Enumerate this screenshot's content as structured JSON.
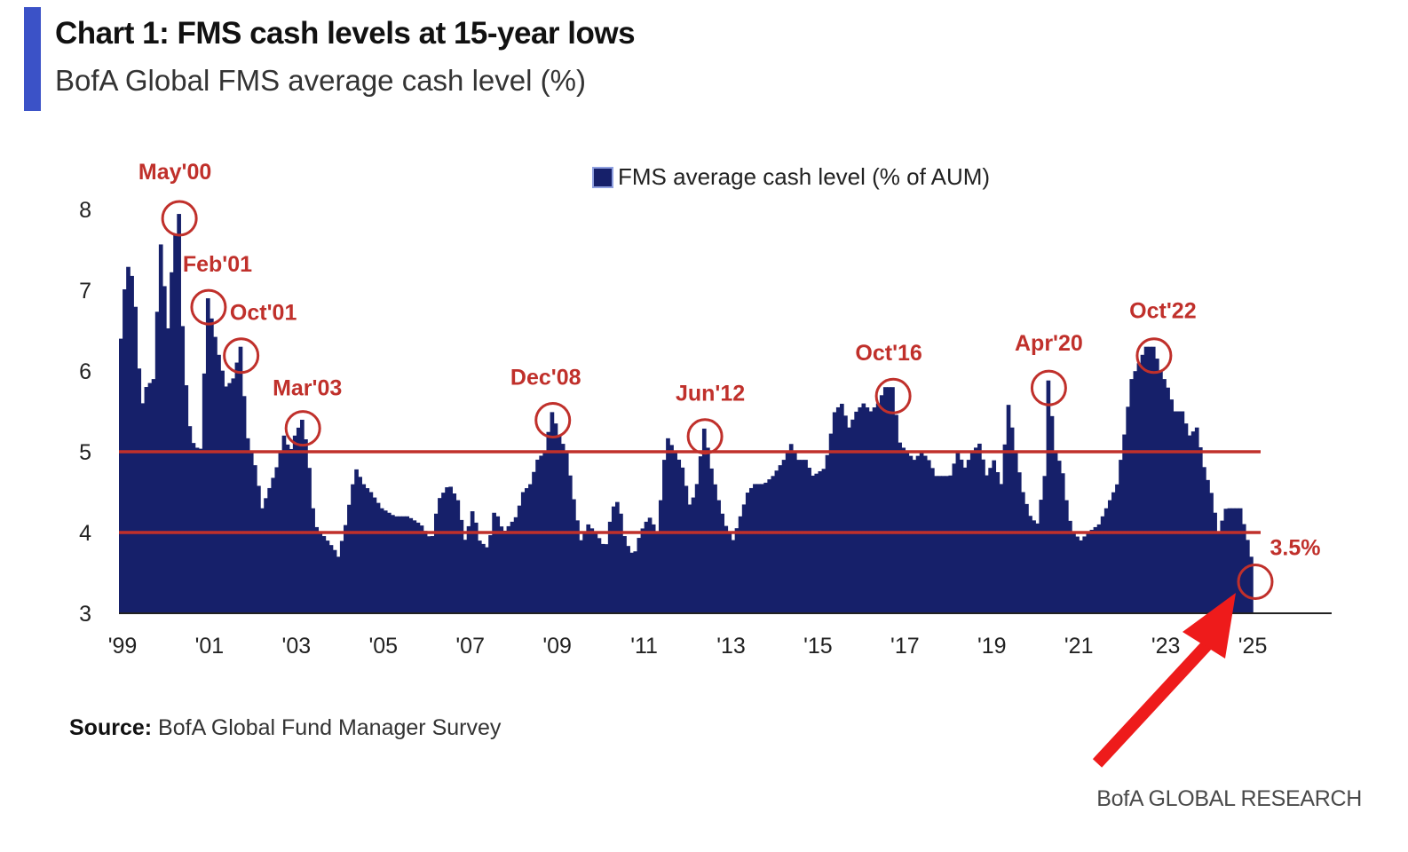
{
  "header": {
    "title": "Chart 1: FMS cash levels at 15-year lows",
    "subtitle": "BofA Global FMS average cash level (%)"
  },
  "footer": {
    "source_label": "Source:",
    "source_text": "BofA Global Fund Manager Survey",
    "brand": "BofA GLOBAL RESEARCH"
  },
  "colors": {
    "bar": "#16206a",
    "annotation": "#c0302b",
    "accent": "#3b52c7",
    "arrow": "#ee1b1b"
  },
  "chart_data": {
    "type": "bar",
    "title": "Chart 1: FMS cash levels at 15-year lows",
    "subtitle": "BofA Global FMS average cash level (%)",
    "series_name": "FMS average cash level (% of AUM)",
    "ylim": [
      3,
      8.5
    ],
    "yticks": [
      3,
      4,
      5,
      6,
      7,
      8
    ],
    "x_start": 1999.0,
    "x_end": 2027.0,
    "xtick_values": [
      1999,
      2001,
      2003,
      2005,
      2007,
      2009,
      2011,
      2013,
      2015,
      2017,
      2019,
      2021,
      2023,
      2025
    ],
    "xtick_labels": [
      "'99",
      "'01",
      "'03",
      "'05",
      "'07",
      "'09",
      "'11",
      "'13",
      "'15",
      "'17",
      "'19",
      "'21",
      "'23",
      "'25"
    ],
    "reference_lines": [
      4.0,
      5.0
    ],
    "keypoints": [
      [
        1999.0,
        6.4
      ],
      [
        1999.08,
        7.0
      ],
      [
        1999.17,
        7.3
      ],
      [
        1999.3,
        7.1
      ],
      [
        1999.42,
        6.0
      ],
      [
        1999.5,
        5.6
      ],
      [
        1999.58,
        5.8
      ],
      [
        1999.75,
        5.9
      ],
      [
        1999.92,
        7.6
      ],
      [
        2000.08,
        6.5
      ],
      [
        2000.2,
        7.5
      ],
      [
        2000.33,
        8.0
      ],
      [
        2000.42,
        6.5
      ],
      [
        2000.55,
        5.4
      ],
      [
        2000.67,
        5.1
      ],
      [
        2000.83,
        5.0
      ],
      [
        2001.0,
        6.9
      ],
      [
        2001.1,
        6.6
      ],
      [
        2001.25,
        6.2
      ],
      [
        2001.42,
        5.8
      ],
      [
        2001.58,
        5.9
      ],
      [
        2001.75,
        6.3
      ],
      [
        2001.9,
        5.2
      ],
      [
        2002.1,
        4.8
      ],
      [
        2002.25,
        4.3
      ],
      [
        2002.45,
        4.6
      ],
      [
        2002.58,
        4.8
      ],
      [
        2002.75,
        5.2
      ],
      [
        2002.9,
        5.0
      ],
      [
        2003.0,
        5.2
      ],
      [
        2003.17,
        5.4
      ],
      [
        2003.3,
        5.0
      ],
      [
        2003.45,
        4.1
      ],
      [
        2003.6,
        4.0
      ],
      [
        2003.75,
        3.9
      ],
      [
        2003.9,
        3.8
      ],
      [
        2004.0,
        3.7
      ],
      [
        2004.17,
        4.1
      ],
      [
        2004.4,
        4.8
      ],
      [
        2004.58,
        4.6
      ],
      [
        2004.75,
        4.5
      ],
      [
        2005.0,
        4.3
      ],
      [
        2005.3,
        4.2
      ],
      [
        2005.6,
        4.2
      ],
      [
        2005.9,
        4.1
      ],
      [
        2006.15,
        3.9
      ],
      [
        2006.3,
        4.4
      ],
      [
        2006.55,
        4.6
      ],
      [
        2006.75,
        4.4
      ],
      [
        2006.92,
        3.9
      ],
      [
        2007.1,
        4.3
      ],
      [
        2007.25,
        3.9
      ],
      [
        2007.45,
        3.8
      ],
      [
        2007.6,
        4.3
      ],
      [
        2007.8,
        4.0
      ],
      [
        2008.1,
        4.2
      ],
      [
        2008.25,
        4.5
      ],
      [
        2008.42,
        4.6
      ],
      [
        2008.58,
        4.9
      ],
      [
        2008.75,
        5.0
      ],
      [
        2008.92,
        5.5
      ],
      [
        2009.08,
        5.2
      ],
      [
        2009.25,
        5.0
      ],
      [
        2009.42,
        4.4
      ],
      [
        2009.58,
        3.9
      ],
      [
        2009.75,
        4.1
      ],
      [
        2009.92,
        4.0
      ],
      [
        2010.15,
        3.8
      ],
      [
        2010.3,
        4.3
      ],
      [
        2010.45,
        4.4
      ],
      [
        2010.6,
        3.9
      ],
      [
        2010.8,
        3.7
      ],
      [
        2010.95,
        4.0
      ],
      [
        2011.15,
        4.2
      ],
      [
        2011.35,
        4.0
      ],
      [
        2011.55,
        5.2
      ],
      [
        2011.75,
        5.0
      ],
      [
        2011.92,
        4.8
      ],
      [
        2012.1,
        4.3
      ],
      [
        2012.25,
        4.6
      ],
      [
        2012.42,
        5.3
      ],
      [
        2012.58,
        4.8
      ],
      [
        2012.75,
        4.4
      ],
      [
        2012.9,
        4.1
      ],
      [
        2013.08,
        3.9
      ],
      [
        2013.25,
        4.2
      ],
      [
        2013.42,
        4.5
      ],
      [
        2013.58,
        4.6
      ],
      [
        2013.8,
        4.6
      ],
      [
        2014.0,
        4.7
      ],
      [
        2014.25,
        4.9
      ],
      [
        2014.42,
        5.1
      ],
      [
        2014.58,
        4.9
      ],
      [
        2014.75,
        4.9
      ],
      [
        2014.92,
        4.7
      ],
      [
        2015.2,
        4.8
      ],
      [
        2015.42,
        5.5
      ],
      [
        2015.58,
        5.6
      ],
      [
        2015.75,
        5.3
      ],
      [
        2015.92,
        5.5
      ],
      [
        2016.08,
        5.6
      ],
      [
        2016.25,
        5.5
      ],
      [
        2016.42,
        5.6
      ],
      [
        2016.58,
        5.8
      ],
      [
        2016.75,
        5.8
      ],
      [
        2016.92,
        5.1
      ],
      [
        2017.08,
        5.0
      ],
      [
        2017.25,
        4.9
      ],
      [
        2017.42,
        5.0
      ],
      [
        2017.58,
        4.9
      ],
      [
        2017.75,
        4.7
      ],
      [
        2017.92,
        4.7
      ],
      [
        2018.08,
        4.7
      ],
      [
        2018.25,
        5.0
      ],
      [
        2018.42,
        4.8
      ],
      [
        2018.58,
        5.0
      ],
      [
        2018.75,
        5.1
      ],
      [
        2018.92,
        4.7
      ],
      [
        2019.08,
        4.9
      ],
      [
        2019.25,
        4.6
      ],
      [
        2019.42,
        5.6
      ],
      [
        2019.58,
        5.0
      ],
      [
        2019.75,
        4.5
      ],
      [
        2019.92,
        4.2
      ],
      [
        2020.08,
        4.1
      ],
      [
        2020.25,
        4.7
      ],
      [
        2020.33,
        5.9
      ],
      [
        2020.5,
        5.0
      ],
      [
        2020.65,
        4.8
      ],
      [
        2020.8,
        4.2
      ],
      [
        2020.92,
        4.0
      ],
      [
        2021.08,
        3.9
      ],
      [
        2021.25,
        4.0
      ],
      [
        2021.5,
        4.1
      ],
      [
        2021.75,
        4.4
      ],
      [
        2021.92,
        4.6
      ],
      [
        2022.08,
        5.2
      ],
      [
        2022.25,
        5.9
      ],
      [
        2022.42,
        6.1
      ],
      [
        2022.58,
        6.3
      ],
      [
        2022.75,
        6.3
      ],
      [
        2022.92,
        6.0
      ],
      [
        2023.08,
        5.8
      ],
      [
        2023.25,
        5.5
      ],
      [
        2023.42,
        5.5
      ],
      [
        2023.58,
        5.2
      ],
      [
        2023.75,
        5.3
      ],
      [
        2023.92,
        4.8
      ],
      [
        2024.08,
        4.5
      ],
      [
        2024.25,
        4.0
      ],
      [
        2024.42,
        4.3
      ],
      [
        2024.58,
        4.3
      ],
      [
        2024.75,
        4.3
      ],
      [
        2024.92,
        3.9
      ],
      [
        2025.08,
        3.5
      ]
    ],
    "annotations": [
      {
        "label": "May'00",
        "x": 2000.33,
        "y": 8.0,
        "label_dx": -5,
        "label_dy": -44
      },
      {
        "label": "Feb'01",
        "x": 2001.0,
        "y": 6.9,
        "label_dx": 10,
        "label_dy": -40
      },
      {
        "label": "Oct'01",
        "x": 2001.75,
        "y": 6.3,
        "label_dx": 25,
        "label_dy": -40
      },
      {
        "label": "Mar'03",
        "x": 2003.17,
        "y": 5.4,
        "label_dx": 5,
        "label_dy": -37
      },
      {
        "label": "Dec'08",
        "x": 2008.92,
        "y": 5.5,
        "label_dx": -8,
        "label_dy": -40
      },
      {
        "label": "Jun'12",
        "x": 2012.42,
        "y": 5.3,
        "label_dx": 6,
        "label_dy": -40
      },
      {
        "label": "Oct'16",
        "x": 2016.75,
        "y": 5.8,
        "label_dx": -5,
        "label_dy": -40
      },
      {
        "label": "Apr'20",
        "x": 2020.33,
        "y": 5.9,
        "label_dx": 0,
        "label_dy": -42
      },
      {
        "label": "Oct'22",
        "x": 2022.75,
        "y": 6.3,
        "label_dx": 10,
        "label_dy": -42
      },
      {
        "label": "3.5%",
        "x": 2025.08,
        "y": 3.5,
        "label_dx": 45,
        "label_dy": -30
      }
    ]
  }
}
